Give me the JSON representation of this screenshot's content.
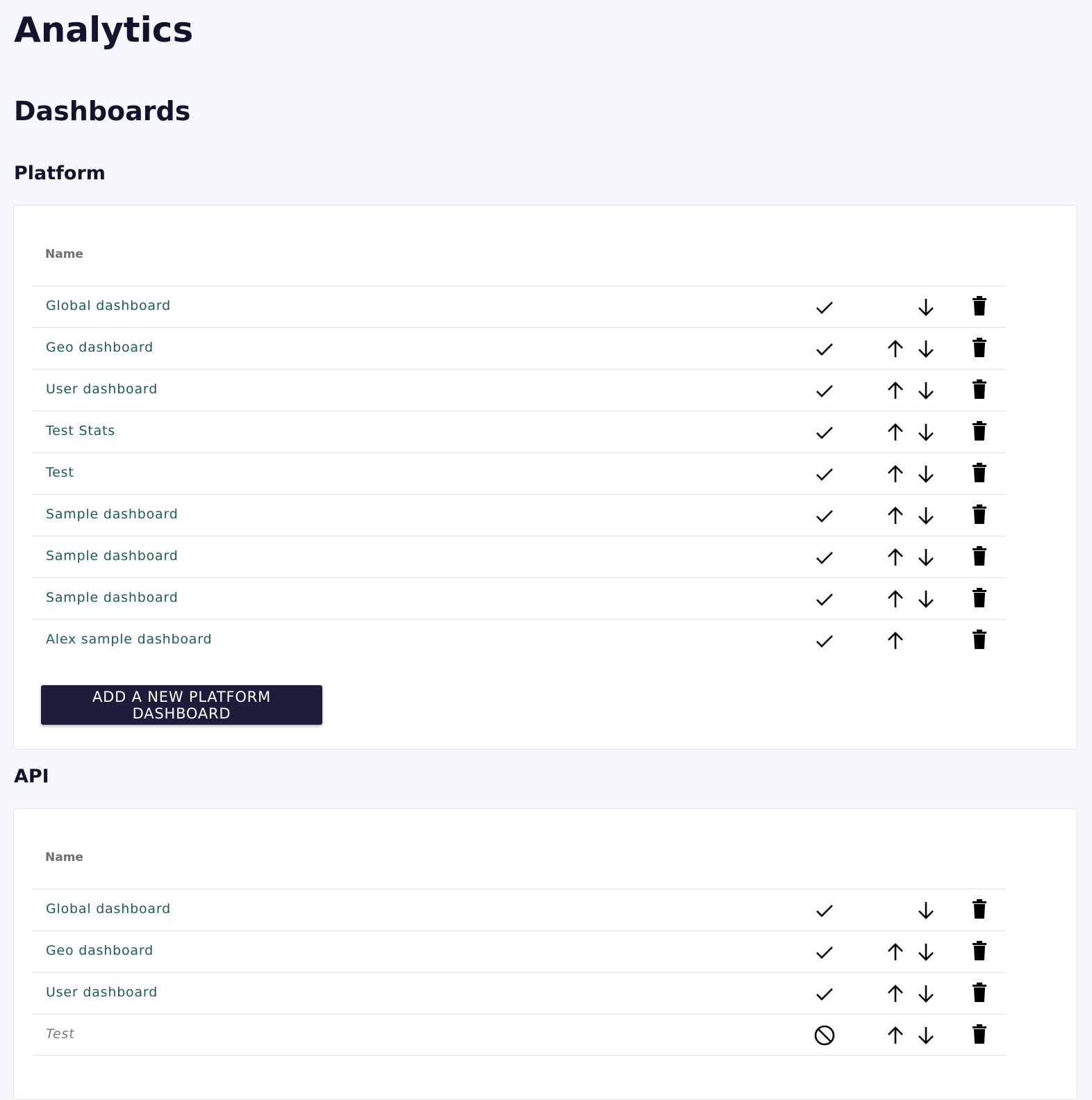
{
  "page_title": "Analytics",
  "section_title": "Dashboards",
  "colors": {
    "link": "#1f5a55",
    "button_bg": "#1d1c3b",
    "background": "#f6f7fc"
  },
  "platform": {
    "heading": "Platform",
    "column_name": "Name",
    "rows": [
      {
        "name": "Global dashboard",
        "enabled": true,
        "up": false,
        "down": true
      },
      {
        "name": "Geo dashboard",
        "enabled": true,
        "up": true,
        "down": true
      },
      {
        "name": "User dashboard",
        "enabled": true,
        "up": true,
        "down": true
      },
      {
        "name": "Test Stats",
        "enabled": true,
        "up": true,
        "down": true
      },
      {
        "name": "Test",
        "enabled": true,
        "up": true,
        "down": true
      },
      {
        "name": "Sample dashboard",
        "enabled": true,
        "up": true,
        "down": true
      },
      {
        "name": "Sample dashboard",
        "enabled": true,
        "up": true,
        "down": true
      },
      {
        "name": "Sample dashboard",
        "enabled": true,
        "up": true,
        "down": true
      },
      {
        "name": "Alex sample dashboard",
        "enabled": true,
        "up": true,
        "down": false
      }
    ],
    "add_button": "ADD A NEW PLATFORM DASHBOARD"
  },
  "api": {
    "heading": "API",
    "column_name": "Name",
    "rows": [
      {
        "name": "Global dashboard",
        "enabled": true,
        "up": false,
        "down": true
      },
      {
        "name": "Geo dashboard",
        "enabled": true,
        "up": true,
        "down": true
      },
      {
        "name": "User dashboard",
        "enabled": true,
        "up": true,
        "down": true
      },
      {
        "name": "Test",
        "enabled": false,
        "up": true,
        "down": true
      }
    ]
  }
}
